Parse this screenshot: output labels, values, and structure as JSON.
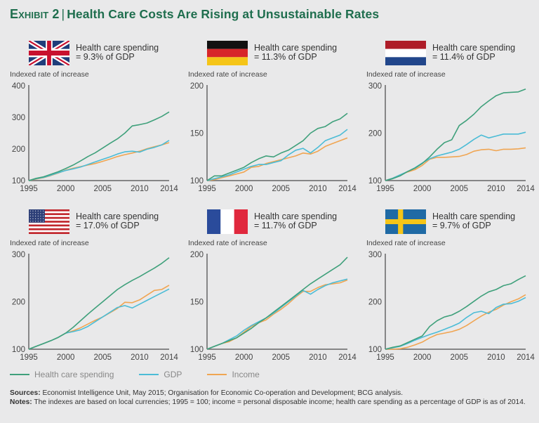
{
  "header": {
    "exhibit": "Exhibit 2",
    "title": "Health Care Costs Are Rising at Unsustainable Rates"
  },
  "colors": {
    "health": "#3fa07b",
    "gdp": "#4bbcd6",
    "income": "#f0a552",
    "title": "#1f6e4e"
  },
  "legend": [
    {
      "key": "health",
      "label": "Health care spending"
    },
    {
      "key": "gdp",
      "label": "GDP"
    },
    {
      "key": "income",
      "label": "Income"
    }
  ],
  "footer": {
    "sources_label": "Sources:",
    "sources_text": " Economist Intelligence Unit, May 2015; Organisation for Economic Co-operation and Development; BCG analysis.",
    "notes_label": "Notes:",
    "notes_text": " The indexes are based on local currencies; 1995 = 100; income = personal disposable income; health care spending as a percentage of GDP is as of 2014."
  },
  "chart_data": [
    {
      "type": "line",
      "country": "United Kingdom",
      "flag": "uk-flag",
      "caption_line1": "Health care spending",
      "caption_line2": "= 9.3% of GDP",
      "ylabel": "Indexed rate of increase",
      "ylim": [
        100,
        400
      ],
      "yticks": [
        100,
        200,
        300,
        400
      ],
      "x": [
        1995,
        1996,
        1997,
        1998,
        1999,
        2000,
        2001,
        2002,
        2003,
        2004,
        2005,
        2006,
        2007,
        2008,
        2009,
        2010,
        2011,
        2012,
        2013,
        2014
      ],
      "xticks": [
        1995,
        2000,
        2005,
        2010,
        2014
      ],
      "series": [
        {
          "name": "Health care spending",
          "key": "health",
          "values": [
            100,
            107,
            112,
            120,
            128,
            138,
            149,
            162,
            176,
            188,
            203,
            218,
            232,
            250,
            273,
            277,
            282,
            292,
            303,
            317
          ]
        },
        {
          "name": "GDP",
          "key": "gdp",
          "values": [
            100,
            106,
            110,
            117,
            125,
            132,
            137,
            143,
            151,
            159,
            167,
            175,
            184,
            191,
            193,
            190,
            199,
            205,
            213,
            227
          ]
        },
        {
          "name": "Income",
          "key": "income",
          "values": [
            100,
            105,
            109,
            116,
            124,
            133,
            139,
            144,
            149,
            154,
            161,
            168,
            176,
            182,
            187,
            193,
            201,
            207,
            213,
            220
          ]
        }
      ]
    },
    {
      "type": "line",
      "country": "Germany",
      "flag": "germany-flag",
      "caption_line1": "Health care spending",
      "caption_line2": "= 11.3% of GDP",
      "ylabel": "Indexed rate of increase",
      "ylim": [
        100,
        200
      ],
      "yticks": [
        100,
        150,
        200
      ],
      "x": [
        1995,
        1996,
        1997,
        1998,
        1999,
        2000,
        2001,
        2002,
        2003,
        2004,
        2005,
        2006,
        2007,
        2008,
        2009,
        2010,
        2011,
        2012,
        2013,
        2014
      ],
      "xticks": [
        1995,
        2000,
        2005,
        2010,
        2014
      ],
      "series": [
        {
          "name": "Health care spending",
          "key": "health",
          "values": [
            100,
            105,
            105,
            108,
            111,
            114,
            119,
            123,
            126,
            125,
            129,
            132,
            137,
            142,
            150,
            155,
            157,
            162,
            165,
            171
          ]
        },
        {
          "name": "GDP",
          "key": "gdp",
          "values": [
            100,
            102,
            104,
            106,
            109,
            112,
            115,
            117,
            117,
            119,
            121,
            127,
            132,
            134,
            129,
            135,
            142,
            145,
            148,
            154
          ]
        },
        {
          "name": "Income",
          "key": "income",
          "values": [
            100,
            101,
            103,
            105,
            107,
            109,
            114,
            115,
            118,
            120,
            122,
            124,
            126,
            129,
            128,
            131,
            136,
            139,
            142,
            145
          ]
        }
      ]
    },
    {
      "type": "line",
      "country": "Netherlands",
      "flag": "netherlands-flag",
      "caption_line1": "Health care spending",
      "caption_line2": "= 11.4% of GDP",
      "ylabel": "Indexed rate of increase",
      "ylim": [
        100,
        300
      ],
      "yticks": [
        100,
        200,
        300
      ],
      "x": [
        1995,
        1996,
        1997,
        1998,
        1999,
        2000,
        2001,
        2002,
        2003,
        2004,
        2005,
        2006,
        2007,
        2008,
        2009,
        2010,
        2011,
        2012,
        2013,
        2014
      ],
      "xticks": [
        1995,
        2000,
        2005,
        2010,
        2014
      ],
      "series": [
        {
          "name": "Health care spending",
          "key": "health",
          "values": [
            100,
            104,
            110,
            119,
            126,
            136,
            150,
            166,
            180,
            186,
            216,
            227,
            240,
            256,
            268,
            279,
            285,
            286,
            287,
            293
          ]
        },
        {
          "name": "GDP",
          "key": "gdp",
          "values": [
            100,
            105,
            112,
            119,
            127,
            137,
            146,
            152,
            156,
            160,
            166,
            176,
            187,
            196,
            190,
            194,
            198,
            198,
            198,
            202
          ]
        },
        {
          "name": "Income",
          "key": "income",
          "values": [
            100,
            105,
            112,
            118,
            123,
            132,
            145,
            149,
            149,
            150,
            151,
            155,
            162,
            165,
            166,
            163,
            166,
            166,
            167,
            169
          ]
        }
      ]
    },
    {
      "type": "line",
      "country": "United States",
      "flag": "usa-flag",
      "caption_line1": "Health care spending",
      "caption_line2": "= 17.0% of GDP",
      "ylabel": "Indexed rate of increase",
      "ylim": [
        100,
        300
      ],
      "yticks": [
        100,
        200,
        300
      ],
      "x": [
        1995,
        1996,
        1997,
        1998,
        1999,
        2000,
        2001,
        2002,
        2003,
        2004,
        2005,
        2006,
        2007,
        2008,
        2009,
        2010,
        2011,
        2012,
        2013,
        2014
      ],
      "xticks": [
        1995,
        2000,
        2005,
        2010,
        2014
      ],
      "series": [
        {
          "name": "Health care spending",
          "key": "health",
          "values": [
            100,
            106,
            112,
            118,
            125,
            134,
            146,
            160,
            174,
            187,
            200,
            213,
            226,
            236,
            245,
            253,
            262,
            271,
            281,
            293
          ]
        },
        {
          "name": "GDP",
          "key": "gdp",
          "values": [
            100,
            106,
            112,
            118,
            125,
            134,
            137,
            141,
            148,
            158,
            168,
            178,
            188,
            192,
            187,
            195,
            203,
            211,
            219,
            227
          ]
        },
        {
          "name": "Income",
          "key": "income",
          "values": [
            100,
            106,
            112,
            118,
            125,
            134,
            139,
            145,
            153,
            161,
            168,
            177,
            186,
            199,
            198,
            204,
            214,
            224,
            226,
            235
          ]
        }
      ]
    },
    {
      "type": "line",
      "country": "France",
      "flag": "france-flag",
      "caption_line1": "Health care spending",
      "caption_line2": "= 11.7% of GDP",
      "ylabel": "Indexed rate of increase",
      "ylim": [
        100,
        200
      ],
      "yticks": [
        100,
        150,
        200
      ],
      "x": [
        1995,
        1996,
        1997,
        1998,
        1999,
        2000,
        2001,
        2002,
        2003,
        2004,
        2005,
        2006,
        2007,
        2008,
        2009,
        2010,
        2011,
        2012,
        2013,
        2014
      ],
      "xticks": [
        1995,
        2000,
        2005,
        2010,
        2014
      ],
      "series": [
        {
          "name": "Health care spending",
          "key": "health",
          "values": [
            100,
            103,
            106,
            109,
            112,
            117,
            122,
            128,
            133,
            139,
            145,
            151,
            157,
            163,
            169,
            174,
            179,
            184,
            189,
            197
          ]
        },
        {
          "name": "GDP",
          "key": "gdp",
          "values": [
            100,
            103,
            106,
            110,
            114,
            120,
            125,
            129,
            133,
            138,
            144,
            150,
            156,
            162,
            158,
            163,
            167,
            170,
            172,
            174
          ]
        },
        {
          "name": "Income",
          "key": "income",
          "values": [
            100,
            103,
            106,
            108,
            112,
            118,
            124,
            128,
            131,
            137,
            142,
            148,
            155,
            161,
            161,
            165,
            168,
            169,
            170,
            173
          ]
        }
      ]
    },
    {
      "type": "line",
      "country": "Sweden",
      "flag": "sweden-flag",
      "caption_line1": "Health care spending",
      "caption_line2": "= 9.7% of GDP",
      "ylabel": "Indexed rate of increase",
      "ylim": [
        100,
        300
      ],
      "yticks": [
        100,
        200,
        300
      ],
      "x": [
        1995,
        1996,
        1997,
        1998,
        1999,
        2000,
        2001,
        2002,
        2003,
        2004,
        2005,
        2006,
        2007,
        2008,
        2009,
        2010,
        2011,
        2012,
        2013,
        2014
      ],
      "xticks": [
        1995,
        2000,
        2005,
        2010,
        2014
      ],
      "series": [
        {
          "name": "Health care spending",
          "key": "health",
          "values": [
            100,
            104,
            107,
            114,
            121,
            128,
            148,
            160,
            168,
            172,
            180,
            190,
            201,
            212,
            221,
            226,
            234,
            238,
            247,
            255
          ]
        },
        {
          "name": "GDP",
          "key": "gdp",
          "values": [
            100,
            103,
            106,
            112,
            119,
            125,
            131,
            136,
            142,
            148,
            155,
            167,
            177,
            180,
            175,
            188,
            195,
            196,
            201,
            209
          ]
        },
        {
          "name": "Income",
          "key": "income",
          "values": [
            100,
            100,
            101,
            104,
            109,
            115,
            124,
            131,
            134,
            137,
            142,
            150,
            160,
            170,
            178,
            184,
            193,
            200,
            206,
            215
          ]
        }
      ]
    }
  ]
}
